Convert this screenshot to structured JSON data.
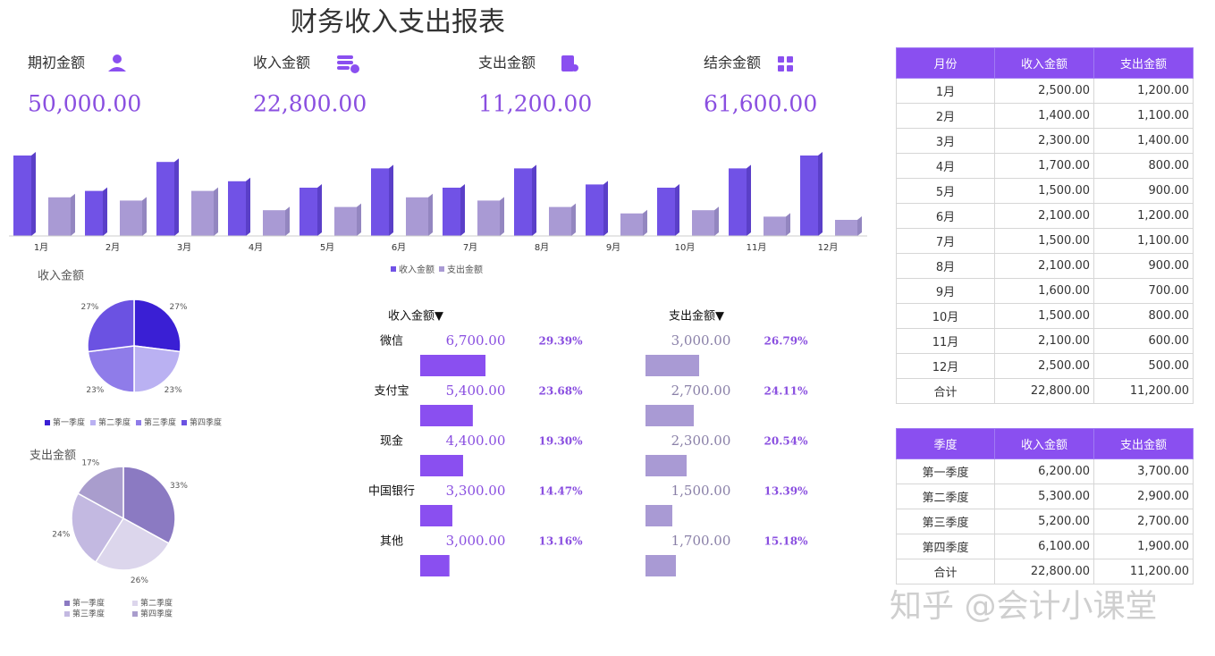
{
  "title": "财务收入支出报表",
  "kpis": [
    {
      "label": "期初金额",
      "value": "50,000.00"
    },
    {
      "label": "收入金额",
      "value": "22,800.00"
    },
    {
      "label": "支出金额",
      "value": "11,200.00"
    },
    {
      "label": "结余金额",
      "value": "61,600.00"
    }
  ],
  "chart_data": [
    {
      "type": "bar",
      "categories": [
        "1月",
        "2月",
        "3月",
        "4月",
        "5月",
        "6月",
        "7月",
        "8月",
        "9月",
        "10月",
        "11月",
        "12月"
      ],
      "series": [
        {
          "name": "收入金额",
          "color": "#7152e6",
          "values": [
            2500,
            1400,
            2300,
            1700,
            1500,
            2100,
            1500,
            2100,
            1600,
            1500,
            2100,
            2500
          ]
        },
        {
          "name": "支出金额",
          "color": "#a99ad4",
          "values": [
            1200,
            1100,
            1400,
            800,
            900,
            1200,
            1100,
            900,
            700,
            800,
            600,
            500
          ]
        }
      ],
      "ylim": [
        0,
        2500
      ],
      "legend": "bottom"
    },
    {
      "type": "pie",
      "title": "收入金额",
      "categories": [
        "第一季度",
        "第二季度",
        "第三季度",
        "第四季度"
      ],
      "values": [
        27,
        23,
        23,
        27
      ],
      "value_labels": [
        "27%",
        "23%",
        "23%",
        "27%"
      ],
      "colors": [
        "#3a1fd4",
        "#bab1f2",
        "#8f7ce9",
        "#6b52e2"
      ],
      "legend": "bottom"
    },
    {
      "type": "pie",
      "title": "支出金额",
      "categories": [
        "第一季度",
        "第二季度",
        "第三季度",
        "第四季度"
      ],
      "values": [
        33,
        26,
        24,
        17
      ],
      "value_labels": [
        "33%",
        "26%",
        "24%",
        "17%"
      ],
      "colors": [
        "#8b7ac2",
        "#dcd6ec",
        "#c3b9e1",
        "#a99dcd"
      ],
      "legend": "bottom"
    },
    {
      "type": "bar",
      "orientation": "horizontal",
      "title": "收入金额▼",
      "categories": [
        "微信",
        "支付宝",
        "现金",
        "中国银行",
        "其他"
      ],
      "values": [
        6700,
        5400,
        4400,
        3300,
        3000
      ],
      "value_labels": [
        "6,700.00",
        "5,400.00",
        "4,400.00",
        "3,300.00",
        "3,000.00"
      ],
      "share_labels": [
        "29.39%",
        "23.68%",
        "19.30%",
        "14.47%",
        "13.16%"
      ],
      "color": "#8a4ff0",
      "xlim": [
        0,
        10000
      ]
    },
    {
      "type": "bar",
      "orientation": "horizontal",
      "title": "支出金额▼",
      "values": [
        3000,
        2700,
        2300,
        1500,
        1700
      ],
      "value_labels": [
        "3,000.00",
        "2,700.00",
        "2,300.00",
        "1,500.00",
        "1,700.00"
      ],
      "share_labels": [
        "26.79%",
        "24.11%",
        "20.54%",
        "13.39%",
        "15.18%"
      ],
      "color": "#a99ad4",
      "xlim": [
        0,
        10000
      ]
    }
  ],
  "monthly_table": {
    "header": [
      "月份",
      "收入金额",
      "支出金额"
    ],
    "rows": [
      [
        "1月",
        "2,500.00",
        "1,200.00"
      ],
      [
        "2月",
        "1,400.00",
        "1,100.00"
      ],
      [
        "3月",
        "2,300.00",
        "1,400.00"
      ],
      [
        "4月",
        "1,700.00",
        "800.00"
      ],
      [
        "5月",
        "1,500.00",
        "900.00"
      ],
      [
        "6月",
        "2,100.00",
        "1,200.00"
      ],
      [
        "7月",
        "1,500.00",
        "1,100.00"
      ],
      [
        "8月",
        "2,100.00",
        "900.00"
      ],
      [
        "9月",
        "1,600.00",
        "700.00"
      ],
      [
        "10月",
        "1,500.00",
        "800.00"
      ],
      [
        "11月",
        "2,100.00",
        "600.00"
      ],
      [
        "12月",
        "2,500.00",
        "500.00"
      ],
      [
        "合计",
        "22,800.00",
        "11,200.00"
      ]
    ]
  },
  "quarter_table": {
    "header": [
      "季度",
      "收入金额",
      "支出金额"
    ],
    "rows": [
      [
        "第一季度",
        "6,200.00",
        "3,700.00"
      ],
      [
        "第二季度",
        "5,300.00",
        "2,900.00"
      ],
      [
        "第三季度",
        "5,200.00",
        "2,700.00"
      ],
      [
        "第四季度",
        "6,100.00",
        "1,900.00"
      ],
      [
        "合计",
        "22,800.00",
        "11,200.00"
      ]
    ]
  },
  "watermark": "知乎 @会计小课堂"
}
